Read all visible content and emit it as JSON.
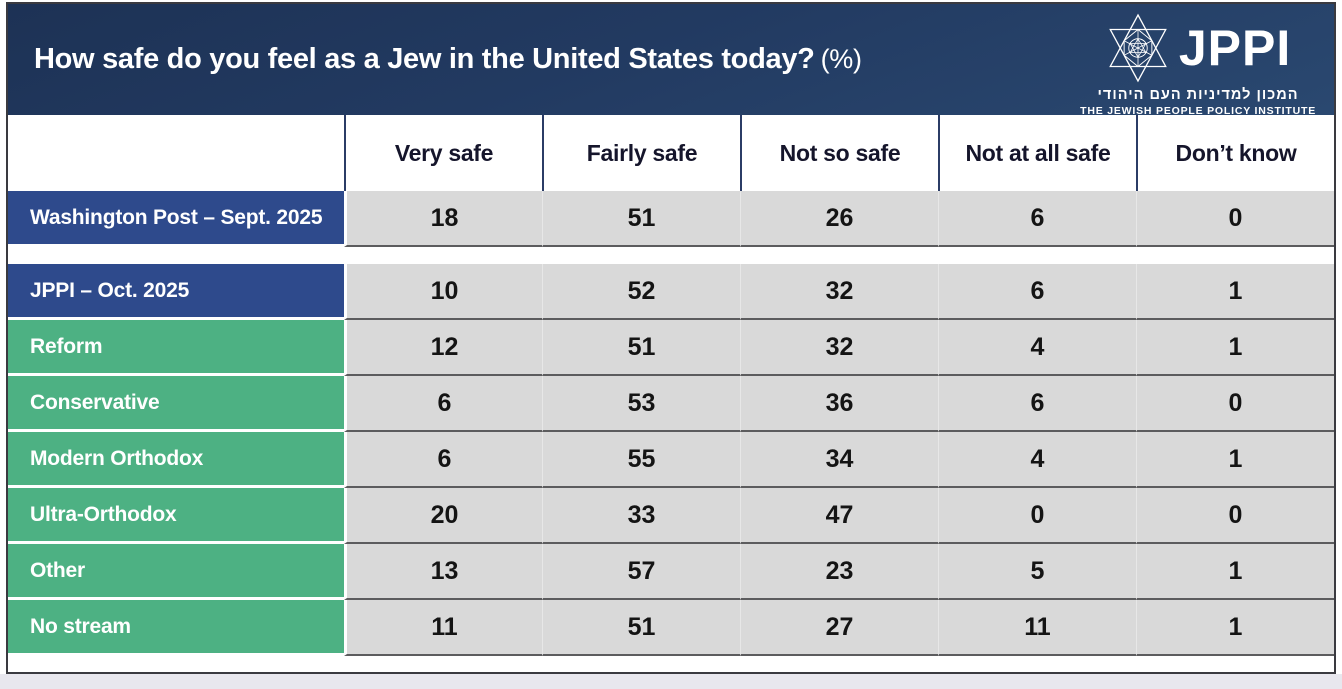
{
  "header": {
    "title": "How safe do you feel as a Jew in the United States today?",
    "title_suffix": "(%)"
  },
  "logo": {
    "icon": "star-of-david-icon",
    "name": "JPPI",
    "hebrew": "המכון למדיניות העם היהודי",
    "english": "THE JEWISH PEOPLE POLICY INSTITUTE"
  },
  "table": {
    "columns": [
      "Very safe",
      "Fairly safe",
      "Not so safe",
      "Not at all safe",
      "Don’t know"
    ],
    "rows": [
      {
        "label": "Washington Post – Sept. 2025",
        "color": "navy",
        "values": [
          18,
          51,
          26,
          6,
          0
        ],
        "group_gap_after": true
      },
      {
        "label": "JPPI – Oct. 2025",
        "color": "navy",
        "values": [
          10,
          52,
          32,
          6,
          1
        ]
      },
      {
        "label": "Reform",
        "color": "green",
        "values": [
          12,
          51,
          32,
          4,
          1
        ]
      },
      {
        "label": "Conservative",
        "color": "green",
        "values": [
          6,
          53,
          36,
          6,
          0
        ]
      },
      {
        "label": "Modern Orthodox",
        "color": "green",
        "values": [
          6,
          55,
          34,
          4,
          1
        ]
      },
      {
        "label": "Ultra-Orthodox",
        "color": "green",
        "values": [
          20,
          33,
          47,
          0,
          0
        ]
      },
      {
        "label": "Other",
        "color": "green",
        "values": [
          13,
          57,
          23,
          5,
          1
        ]
      },
      {
        "label": "No stream",
        "color": "green",
        "values": [
          11,
          51,
          27,
          11,
          1
        ]
      }
    ]
  },
  "colors": {
    "header_navy_top": "#1d3255",
    "header_navy_bottom": "#2a4870",
    "row_label_navy": "#2e4a8c",
    "row_label_green": "#4db183",
    "cell_background": "#d9d9d9",
    "column_divider_navy": "#2b3c66",
    "row_divider_gray": "#5c5c5e"
  },
  "chart_data": {
    "type": "table",
    "title": "How safe do you feel as a Jew in the United States today? (%)",
    "categories": [
      "Very safe",
      "Fairly safe",
      "Not so safe",
      "Not at all safe",
      "Don't know"
    ],
    "series": [
      {
        "name": "Washington Post – Sept. 2025",
        "values": [
          18,
          51,
          26,
          6,
          0
        ]
      },
      {
        "name": "JPPI – Oct. 2025",
        "values": [
          10,
          52,
          32,
          6,
          1
        ]
      },
      {
        "name": "Reform",
        "values": [
          12,
          51,
          32,
          4,
          1
        ]
      },
      {
        "name": "Conservative",
        "values": [
          6,
          53,
          36,
          6,
          0
        ]
      },
      {
        "name": "Modern Orthodox",
        "values": [
          6,
          55,
          34,
          4,
          1
        ]
      },
      {
        "name": "Ultra-Orthodox",
        "values": [
          20,
          33,
          47,
          0,
          0
        ]
      },
      {
        "name": "Other",
        "values": [
          13,
          57,
          23,
          5,
          1
        ]
      },
      {
        "name": "No stream",
        "values": [
          11,
          51,
          27,
          11,
          1
        ]
      }
    ],
    "source_groups": {
      "standalone": [
        "Washington Post – Sept. 2025"
      ],
      "jppi_breakdown": [
        "JPPI – Oct. 2025",
        "Reform",
        "Conservative",
        "Modern Orthodox",
        "Ultra-Orthodox",
        "Other",
        "No stream"
      ]
    },
    "units": "percent"
  }
}
